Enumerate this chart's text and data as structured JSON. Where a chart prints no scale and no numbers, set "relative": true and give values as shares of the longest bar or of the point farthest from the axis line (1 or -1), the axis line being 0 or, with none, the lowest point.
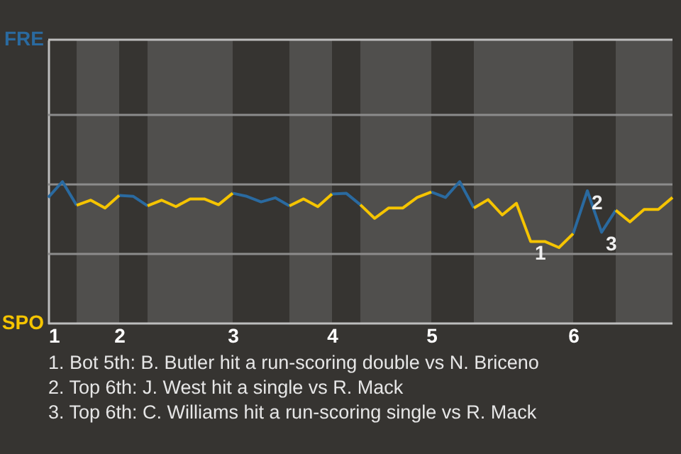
{
  "chart_data": {
    "type": "line",
    "relative": true,
    "categories": [
      "1",
      null,
      null,
      null,
      null,
      "2",
      null,
      null,
      null,
      null,
      null,
      null,
      null,
      "3",
      null,
      null,
      null,
      null,
      null,
      null,
      "4",
      null,
      null,
      null,
      null,
      null,
      null,
      "5",
      null,
      null,
      null,
      null,
      null,
      null,
      null,
      null,
      null,
      "6",
      null,
      null,
      null,
      null,
      null,
      null,
      null
    ],
    "series": [
      {
        "color": "#2a6aa0",
        "values": [
          0.888,
          1,
          0.833,
          null,
          null,
          0.902,
          0.896,
          0.829,
          null,
          null,
          null,
          null,
          null,
          0.918,
          0.896,
          0.857,
          0.886,
          0.829,
          null,
          null,
          0.912,
          0.918,
          0.837,
          null,
          null,
          null,
          null,
          0.927,
          0.888,
          1,
          0.814,
          null,
          null,
          null,
          null,
          null,
          null,
          0.633,
          0.935,
          0.643,
          0.798,
          null,
          null,
          null,
          null
        ]
      },
      {
        "color": "#f5c400",
        "values": [
          null,
          null,
          0.833,
          0.869,
          0.814,
          0.902,
          null,
          0.829,
          0.869,
          0.824,
          0.878,
          0.878,
          0.837,
          0.918,
          null,
          null,
          null,
          0.829,
          0.878,
          0.824,
          0.912,
          null,
          0.837,
          0.741,
          0.814,
          0.814,
          0.888,
          0.927,
          null,
          null,
          0.814,
          0.873,
          0.765,
          0.847,
          0.578,
          0.578,
          0.535,
          0.633,
          null,
          null,
          0.798,
          0.716,
          0.804,
          0.804,
          0.888
        ]
      }
    ],
    "marker": "none",
    "line_style": "solid",
    "ref_lines": [
      {
        "axis": "y",
        "value": 0.49,
        "color": "#8c8c8c"
      },
      {
        "axis": "y",
        "value": 0.98,
        "color": "#8c8c8c"
      },
      {
        "axis": "y",
        "value": 1.47,
        "color": "#8c8c8c"
      }
    ],
    "annotations": [
      "FRE",
      "SPO",
      {
        "text": "1",
        "y": 0.578
      },
      {
        "text": "2",
        "y": 0.935
      },
      {
        "text": "3",
        "y": 0.643
      },
      "1. Bot 5th: B. Butler hit a run-scoring double vs N. Briceno",
      "2. Top 6th: J. West hit a single vs R. Mack",
      "3. Top 6th: C. Williams hit a run-scoring single vs R. Mack"
    ]
  }
}
